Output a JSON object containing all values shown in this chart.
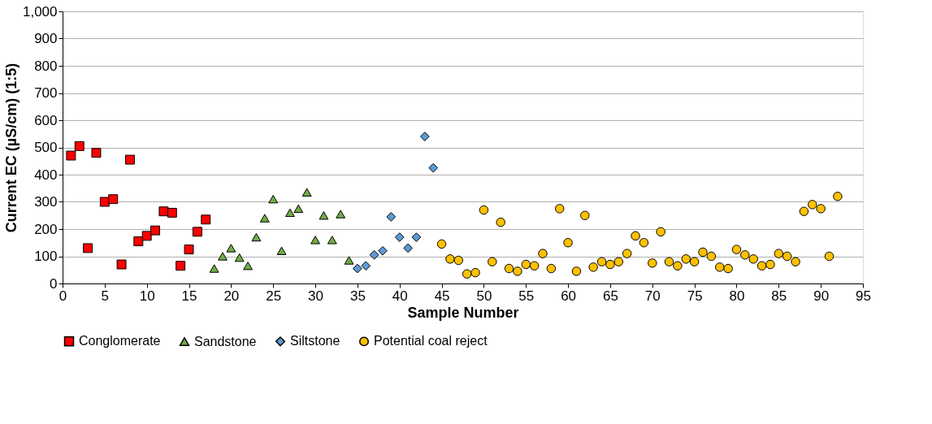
{
  "chart_data": {
    "type": "scatter",
    "xlabel": "Sample Number",
    "ylabel": "Current EC (µS/cm) (1:5)",
    "xlim": [
      0,
      95
    ],
    "xticks": [
      0,
      5,
      10,
      15,
      20,
      25,
      30,
      35,
      40,
      45,
      50,
      55,
      60,
      65,
      70,
      75,
      80,
      85,
      90,
      95
    ],
    "ylim": [
      0,
      1000
    ],
    "yticks": [
      0,
      100,
      200,
      300,
      400,
      500,
      600,
      700,
      800,
      900,
      {
        "value": 1000,
        "label": "1,000"
      }
    ],
    "grid": "y",
    "legend": "bottom",
    "series": [
      {
        "name": "Conglomerate",
        "color": "#ff0000",
        "marker": "square",
        "x": [
          1,
          2,
          3,
          4,
          5,
          6,
          7,
          8,
          9,
          10,
          11,
          12,
          13,
          14,
          15,
          16,
          17
        ],
        "values": [
          470,
          505,
          130,
          480,
          300,
          310,
          70,
          455,
          155,
          175,
          195,
          265,
          260,
          65,
          125,
          190,
          235
        ]
      },
      {
        "name": "Sandstone",
        "color": "#70ad47",
        "marker": "triangle",
        "x": [
          18,
          19,
          20,
          21,
          22,
          23,
          24,
          25,
          26,
          27,
          28,
          29,
          30,
          31,
          32,
          33,
          34
        ],
        "values": [
          55,
          100,
          130,
          95,
          65,
          170,
          240,
          310,
          120,
          260,
          275,
          335,
          160,
          250,
          160,
          255,
          85
        ]
      },
      {
        "name": "Siltstone",
        "color": "#5b9bd5",
        "marker": "diamond",
        "x": [
          35,
          36,
          37,
          38,
          39,
          40,
          41,
          42,
          43,
          44
        ],
        "values": [
          55,
          65,
          105,
          120,
          245,
          170,
          130,
          170,
          540,
          425
        ]
      },
      {
        "name": "Potential coal reject",
        "color": "#ffc000",
        "marker": "circle",
        "x": [
          45,
          46,
          47,
          48,
          49,
          50,
          51,
          52,
          53,
          54,
          55,
          56,
          57,
          58,
          59,
          60,
          61,
          62,
          63,
          64,
          65,
          66,
          67,
          68,
          69,
          70,
          71,
          72,
          73,
          74,
          75,
          76,
          77,
          78,
          79,
          80,
          81,
          82,
          83,
          84,
          85,
          86,
          87,
          88,
          89,
          90,
          91,
          92
        ],
        "values": [
          145,
          90,
          85,
          35,
          40,
          270,
          80,
          225,
          55,
          45,
          70,
          65,
          110,
          55,
          275,
          150,
          45,
          250,
          60,
          80,
          70,
          80,
          110,
          175,
          150,
          75,
          190,
          80,
          65,
          90,
          80,
          115,
          100,
          60,
          55,
          125,
          105,
          90,
          65,
          70,
          110,
          100,
          80,
          265,
          290,
          275,
          100,
          320
        ]
      }
    ]
  }
}
